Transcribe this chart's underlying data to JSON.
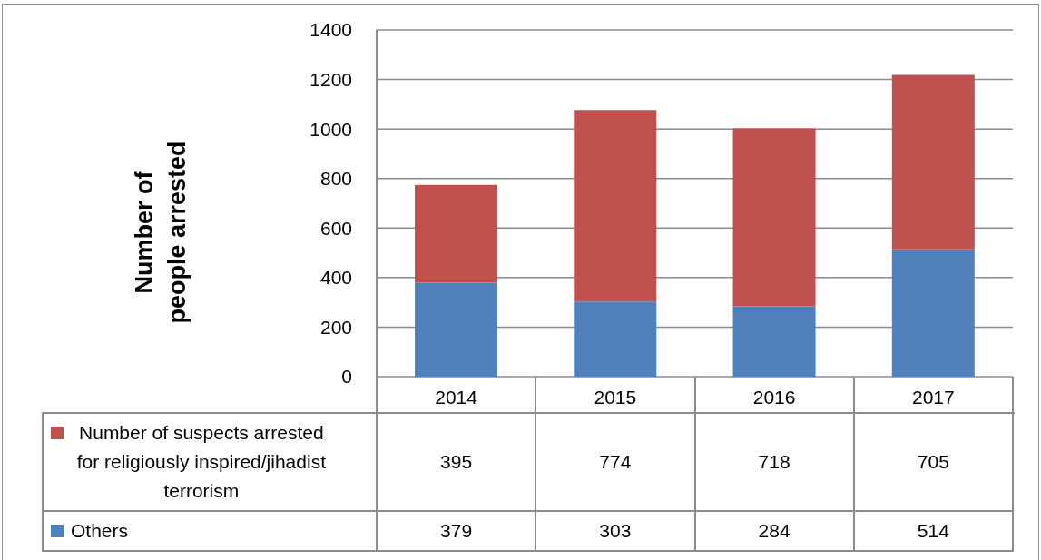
{
  "chart_data": {
    "type": "bar",
    "ylabel": "Number of\npeople arrested",
    "categories": [
      "2014",
      "2015",
      "2016",
      "2017"
    ],
    "series": [
      {
        "name": "Others",
        "color": "#4f81bd",
        "values": [
          379,
          303,
          284,
          514
        ]
      },
      {
        "name": "Number of suspects arrested for religiously inspired/jihadist terrorism",
        "color": "#c0504d",
        "values": [
          395,
          774,
          718,
          705
        ]
      }
    ],
    "stacked": true,
    "ylim": [
      0,
      1400
    ],
    "yticks": [
      0,
      200,
      400,
      600,
      800,
      1000,
      1200,
      1400
    ],
    "grid": "y",
    "legend": "bottom",
    "data_labels": true
  }
}
